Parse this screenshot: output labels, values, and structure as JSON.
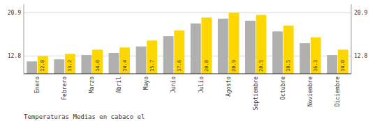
{
  "chart_data": {
    "type": "bar",
    "title": "Temperaturas Medias en cabaco el",
    "categories": [
      "Enero",
      "Febrero",
      "Marzo",
      "Abril",
      "Mayo",
      "Junio",
      "Julio",
      "Agosto",
      "Septiembre",
      "Octubre",
      "Noviembre",
      "Diciembre"
    ],
    "series": [
      {
        "color": "#B0B0B0",
        "values": [
          11.8,
          12.2,
          13.0,
          13.4,
          14.6,
          16.5,
          18.9,
          19.8,
          19.4,
          17.4,
          15.2,
          13.0
        ]
      },
      {
        "color": "#FFD700",
        "values": [
          12.8,
          13.2,
          14.0,
          14.4,
          15.7,
          17.6,
          20.0,
          20.9,
          20.5,
          18.5,
          16.3,
          14.0
        ],
        "data_labels": true,
        "value_labels": [
          "12.8",
          "13.2",
          "14.0",
          "14.4",
          "15.7",
          "17.6",
          "20.0",
          "20.9",
          "20.5",
          "18.5",
          "16.3",
          "14.0"
        ]
      }
    ],
    "ylim": [
      9.5,
      22.5
    ],
    "yticks": [
      12.8,
      20.9
    ],
    "y2lim": [
      9.5,
      22.5
    ],
    "y2ticks": [
      12.8,
      20.9
    ],
    "grid": true
  }
}
